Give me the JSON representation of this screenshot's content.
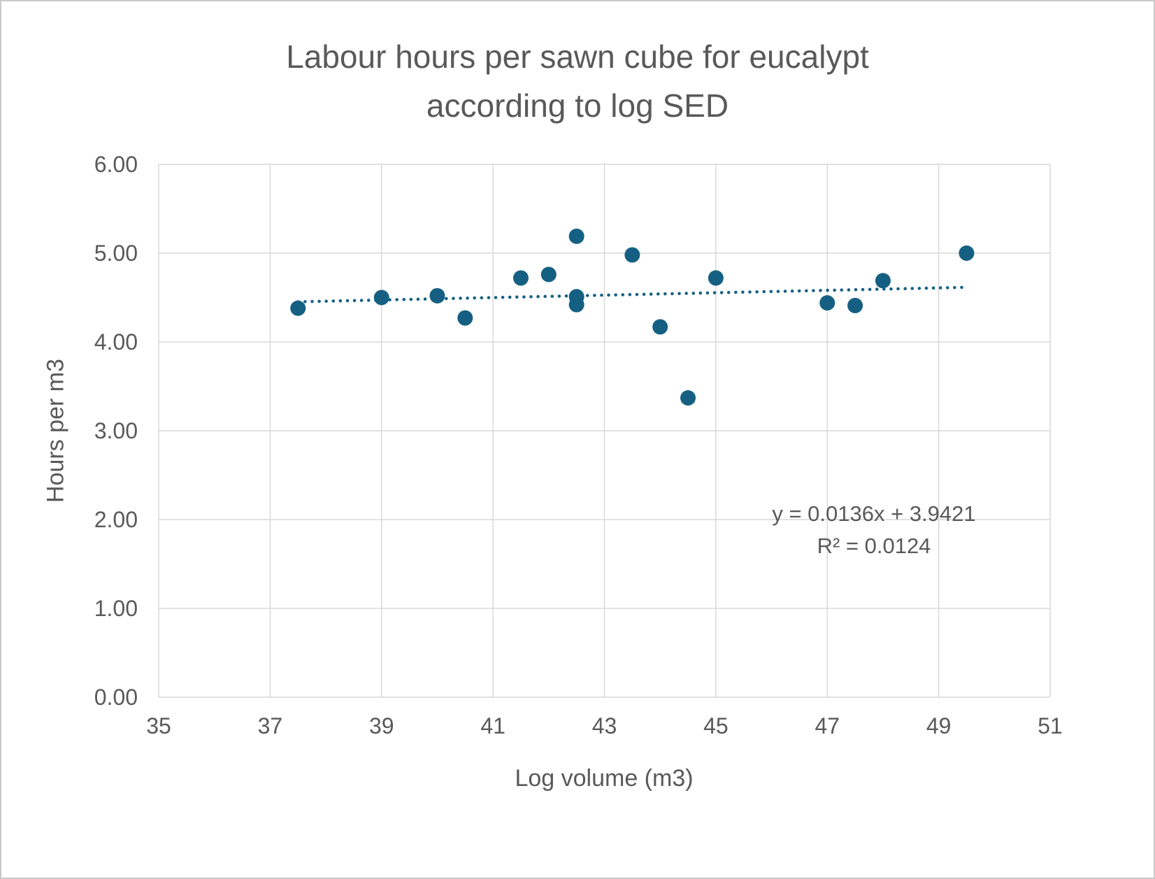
{
  "chart": {
    "title_line1": "Labour hours per sawn cube for eucalypt",
    "title_line2": "according to log SED",
    "xlabel": "Log volume (m3)",
    "ylabel": "Hours per m3",
    "trend_equation": "y = 0.0136x + 3.9421",
    "trend_r2": "R² = 0.0124"
  },
  "chart_data": {
    "type": "scatter",
    "title": "Labour hours per sawn cube for eucalypt according to log SED",
    "xlabel": "Log volume (m3)",
    "ylabel": "Hours per m3",
    "xlim": [
      35,
      51
    ],
    "ylim": [
      0,
      6
    ],
    "x_ticks": [
      "35",
      "37",
      "39",
      "41",
      "43",
      "45",
      "47",
      "49",
      "51"
    ],
    "y_ticks": [
      "0.00",
      "1.00",
      "2.00",
      "3.00",
      "4.00",
      "5.00",
      "6.00"
    ],
    "grid": true,
    "legend": "none",
    "points": [
      [
        37.5,
        4.38
      ],
      [
        39.0,
        4.5
      ],
      [
        40.0,
        4.52
      ],
      [
        40.5,
        4.27
      ],
      [
        41.5,
        4.72
      ],
      [
        42.0,
        4.76
      ],
      [
        42.5,
        5.19
      ],
      [
        42.5,
        4.51
      ],
      [
        42.5,
        4.42
      ],
      [
        43.5,
        4.98
      ],
      [
        44.0,
        4.17
      ],
      [
        44.5,
        3.37
      ],
      [
        45.0,
        4.72
      ],
      [
        47.0,
        4.44
      ],
      [
        47.5,
        4.41
      ],
      [
        48.0,
        4.69
      ],
      [
        49.5,
        5.0
      ]
    ],
    "trendline": {
      "slope": 0.0136,
      "intercept": 3.9421,
      "x_start": 37.5,
      "x_end": 49.5,
      "style": "dotted",
      "equation": "y = 0.0136x + 3.9421",
      "r_squared": 0.0124
    },
    "marker_color": "#156082",
    "trendline_color": "#156082",
    "gridline_color": "#d9d9d9",
    "text_color": "#595959"
  }
}
